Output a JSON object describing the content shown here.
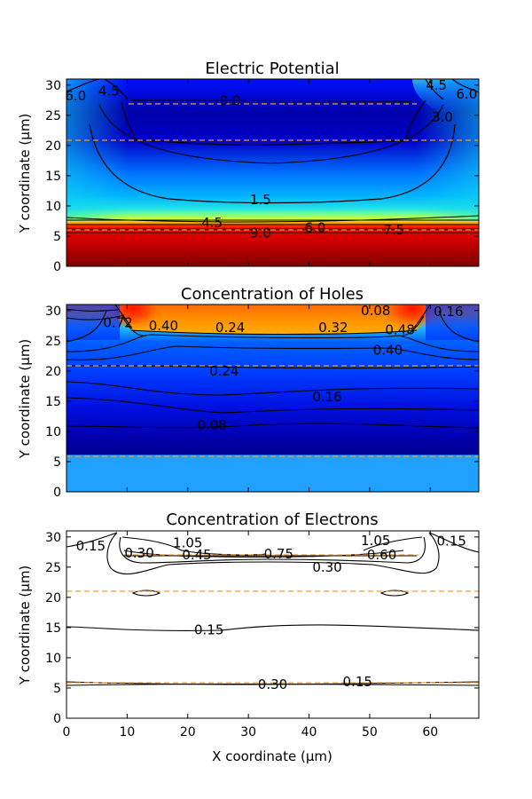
{
  "chart_data": [
    {
      "type": "heatmap",
      "title": "Electric Potential",
      "xlabel": "",
      "ylabel": "Y coordinate (µm)",
      "xlim": [
        0,
        68
      ],
      "ylim": [
        0,
        31
      ],
      "xticks": [],
      "yticks": [
        0,
        5,
        10,
        15,
        20,
        25,
        30
      ],
      "colormap": "jet",
      "contour_labels": [
        {
          "text": "6.0",
          "x": 1.5,
          "y": 28.2
        },
        {
          "text": "4.5",
          "x": 7,
          "y": 29
        },
        {
          "text": "0.0",
          "x": 27,
          "y": 27.4
        },
        {
          "text": "1.5",
          "x": 32,
          "y": 11
        },
        {
          "text": "4.5",
          "x": 24,
          "y": 7.2
        },
        {
          "text": "6.0",
          "x": 41,
          "y": 6.4
        },
        {
          "text": "9.0",
          "x": 32,
          "y": 5.5
        },
        {
          "text": "7.5",
          "x": 54,
          "y": 6
        },
        {
          "text": "6.0",
          "x": 66,
          "y": 28.5
        },
        {
          "text": "3.0",
          "x": 62,
          "y": 24.7
        },
        {
          "text": "4.5",
          "x": 61,
          "y": 30
        }
      ],
      "boundary_lines_y": [
        27,
        21,
        6
      ]
    },
    {
      "type": "heatmap",
      "title": "Concentration of Holes",
      "xlabel": "",
      "ylabel": "Y coordinate (µm)",
      "xlim": [
        0,
        68
      ],
      "ylim": [
        0,
        31
      ],
      "xticks": [],
      "yticks": [
        0,
        5,
        10,
        15,
        20,
        25,
        30
      ],
      "colormap": "jet",
      "contour_labels": [
        {
          "text": "0.72",
          "x": 8.5,
          "y": 28
        },
        {
          "text": "0.40",
          "x": 16,
          "y": 27.5
        },
        {
          "text": "0.24",
          "x": 27,
          "y": 27.2
        },
        {
          "text": "0.08",
          "x": 51,
          "y": 30
        },
        {
          "text": "0.16",
          "x": 63,
          "y": 29.8
        },
        {
          "text": "0.32",
          "x": 44,
          "y": 27.2
        },
        {
          "text": "0.48",
          "x": 55,
          "y": 26.8
        },
        {
          "text": "0.40",
          "x": 53,
          "y": 23.4
        },
        {
          "text": "0.24",
          "x": 26,
          "y": 20
        },
        {
          "text": "0.16",
          "x": 43,
          "y": 15.7
        },
        {
          "text": "0.08",
          "x": 24,
          "y": 11
        }
      ],
      "boundary_lines_y": [
        27,
        21,
        6
      ]
    },
    {
      "type": "contour",
      "title": "Concentration of Electrons",
      "xlabel": "X coordinate (µm)",
      "ylabel": "Y coordinate (µm)",
      "xlim": [
        0,
        68
      ],
      "ylim": [
        0,
        31
      ],
      "xticks": [
        0,
        10,
        20,
        30,
        40,
        50,
        60
      ],
      "yticks": [
        0,
        5,
        10,
        15,
        20,
        25,
        30
      ],
      "contour_labels": [
        {
          "text": "0.15",
          "x": 4,
          "y": 28.5
        },
        {
          "text": "1.05",
          "x": 20,
          "y": 29
        },
        {
          "text": "0.30",
          "x": 12,
          "y": 27.3
        },
        {
          "text": "0.45",
          "x": 21.5,
          "y": 27
        },
        {
          "text": "0.75",
          "x": 35,
          "y": 27.2
        },
        {
          "text": "1.05",
          "x": 51,
          "y": 29.4
        },
        {
          "text": "0.15",
          "x": 63.5,
          "y": 29.3
        },
        {
          "text": "0.60",
          "x": 52,
          "y": 27
        },
        {
          "text": "0.30",
          "x": 43,
          "y": 25
        },
        {
          "text": "0.15",
          "x": 23.5,
          "y": 14.6
        },
        {
          "text": "0.30",
          "x": 34,
          "y": 5.6
        },
        {
          "text": "0.15",
          "x": 48,
          "y": 6
        }
      ],
      "boundary_lines_y": [
        27,
        21,
        6
      ]
    }
  ]
}
